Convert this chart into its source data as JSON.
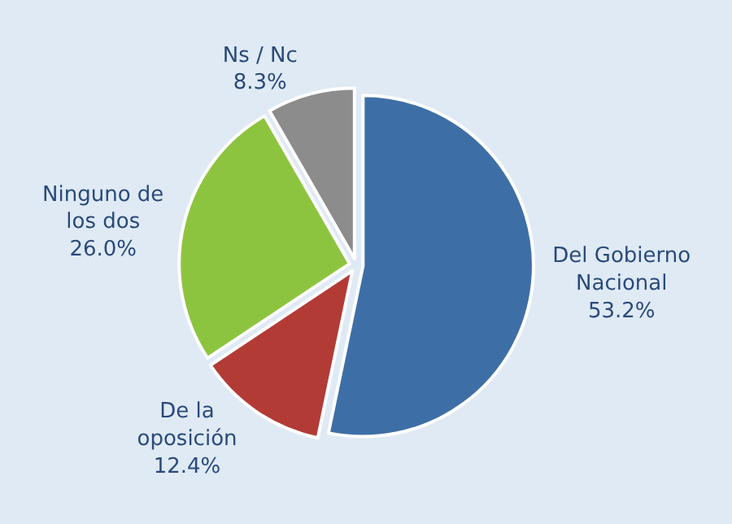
{
  "chart_data": {
    "type": "pie",
    "categories": [
      "Del Gobierno Nacional",
      "De la oposición",
      "Ninguno de los dos",
      "Ns / Nc"
    ],
    "values": [
      53.2,
      12.4,
      26.0,
      8.3
    ],
    "value_labels": [
      "53.2%",
      "12.4%",
      "26.0%",
      "8.3%"
    ],
    "colors": [
      "#3d6fa6",
      "#b23b36",
      "#8dc43f",
      "#8c8c8c"
    ],
    "legend": false
  }
}
